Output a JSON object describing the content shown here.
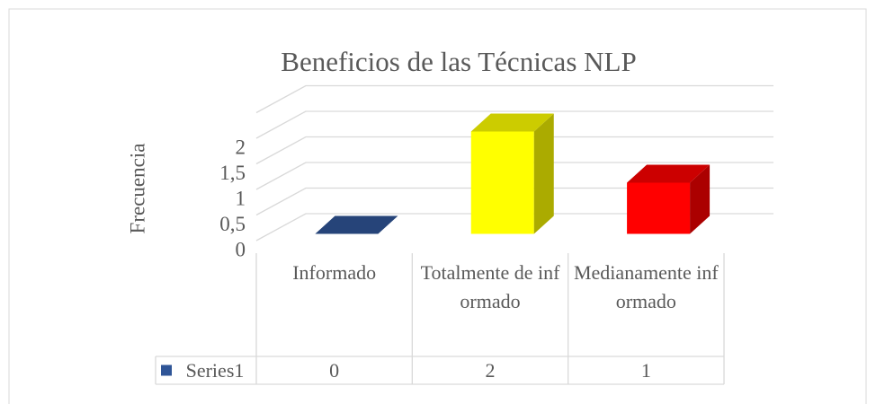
{
  "chart_data": {
    "type": "bar3d",
    "title": "Beneficios de las Técnicas NLP",
    "y_label": "Frecuencia",
    "categories": [
      "Informado",
      "Totalmente de informado",
      "Medianamente informado"
    ],
    "series": [
      {
        "name": "Series1",
        "color": "#2f5597",
        "values": [
          0,
          2,
          1
        ]
      }
    ],
    "point_colors": [
      "#2f5597",
      "#ffff00",
      "#ff0000"
    ],
    "ylim": [
      0,
      2.5
    ],
    "yticks": [
      0,
      {
        "value": 0.5,
        "label": "0,5"
      },
      1,
      {
        "value": 1.5,
        "label": "1,5"
      },
      2
    ],
    "grid": true,
    "data_table": true
  }
}
